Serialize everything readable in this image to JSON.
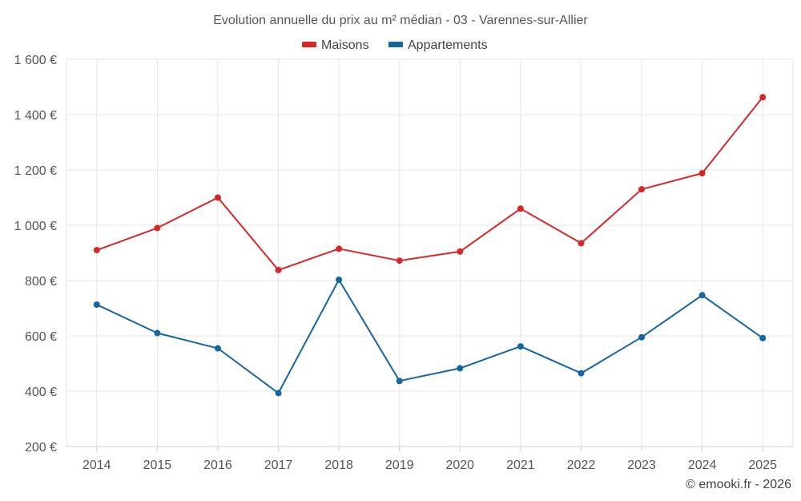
{
  "chart_data": {
    "type": "line",
    "title": "Evolution annuelle du prix au m² médian - 03 - Varennes-sur-Allier",
    "categories": [
      "2014",
      "2015",
      "2016",
      "2017",
      "2018",
      "2019",
      "2020",
      "2021",
      "2022",
      "2023",
      "2024",
      "2025"
    ],
    "series": [
      {
        "name": "Maisons",
        "color": "#d62728",
        "values": [
          910,
          990,
          1100,
          838,
          915,
          872,
          905,
          1060,
          935,
          1130,
          1188,
          1463
        ]
      },
      {
        "name": "Appartements",
        "color": "#1565a0",
        "values": [
          713,
          610,
          555,
          393,
          803,
          437,
          483,
          562,
          465,
          595,
          747,
          592
        ]
      }
    ],
    "ylim": [
      200,
      1600
    ],
    "yticks": [
      200,
      400,
      600,
      800,
      1000,
      1200,
      1400,
      1600
    ],
    "ytick_labels": [
      "200 €",
      "400 €",
      "600 €",
      "800 €",
      "1 000 €",
      "1 200 €",
      "1 400 €",
      "1 600 €"
    ],
    "xlabel": "",
    "ylabel": "",
    "grid": true,
    "legend_position": "top-center"
  },
  "credit": "© emooki.fr - 2026"
}
